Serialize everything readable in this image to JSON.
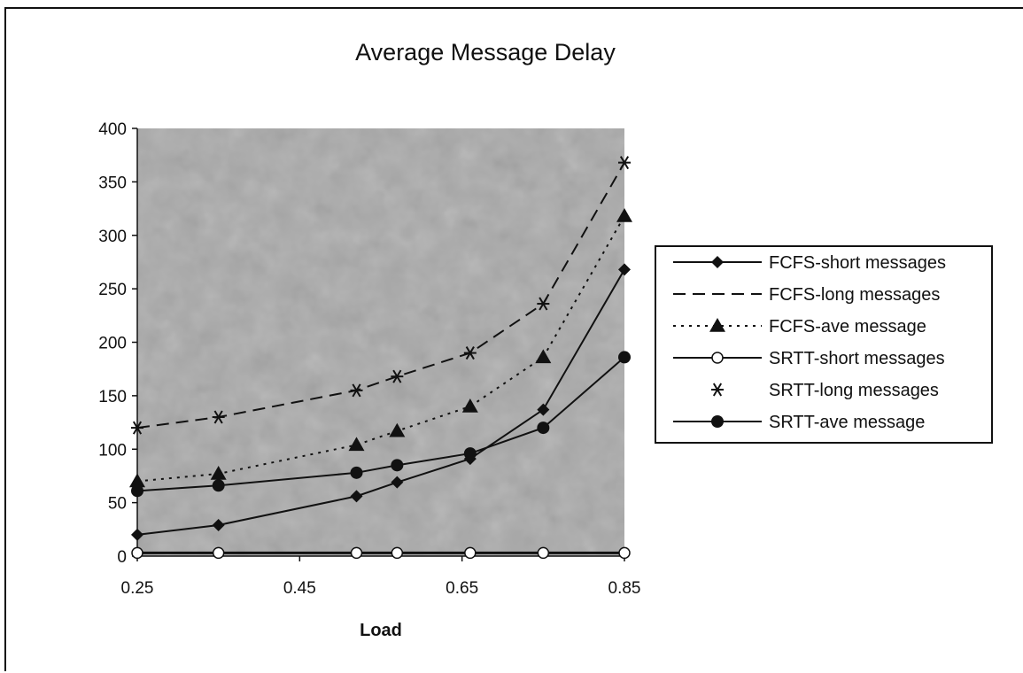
{
  "chart_data": {
    "type": "line",
    "title": "Average Message Delay",
    "xlabel": "Load",
    "ylabel": "",
    "x": [
      0.25,
      0.35,
      0.52,
      0.57,
      0.66,
      0.75,
      0.85
    ],
    "xticks": [
      0.25,
      0.45,
      0.65,
      0.85
    ],
    "xtick_labels": [
      "0.25",
      "0.45",
      "0.65",
      "0.85"
    ],
    "xlim": [
      0.25,
      0.85
    ],
    "yticks": [
      0,
      50,
      100,
      150,
      200,
      250,
      300,
      350,
      400
    ],
    "ylim": [
      0,
      400
    ],
    "grid": false,
    "legend_position": "right",
    "plot_background": "#a9a9a9",
    "series": [
      {
        "name": "FCFS-short messages",
        "line": "solid",
        "marker": "diamond",
        "values": [
          20,
          29,
          56,
          69,
          91,
          137,
          268
        ]
      },
      {
        "name": "FCFS-long messages",
        "line": "dashed",
        "marker": "none",
        "values": [
          120,
          130,
          155,
          168,
          190,
          236,
          368
        ]
      },
      {
        "name": "FCFS-ave message",
        "line": "dotted",
        "marker": "triangle",
        "values": [
          70,
          77,
          104,
          117,
          140,
          186,
          318
        ]
      },
      {
        "name": "SRTT-short messages",
        "line": "solid",
        "marker": "open-circle",
        "values": [
          3,
          3,
          3,
          3,
          3,
          3,
          3
        ]
      },
      {
        "name": "SRTT-long messages",
        "line": "none",
        "marker": "asterisk",
        "values": [
          120,
          130,
          155,
          168,
          190,
          236,
          368
        ]
      },
      {
        "name": "SRTT-ave message",
        "line": "solid",
        "marker": "filled-circle",
        "values": [
          61,
          66,
          78,
          85,
          96,
          120,
          186
        ]
      }
    ]
  }
}
